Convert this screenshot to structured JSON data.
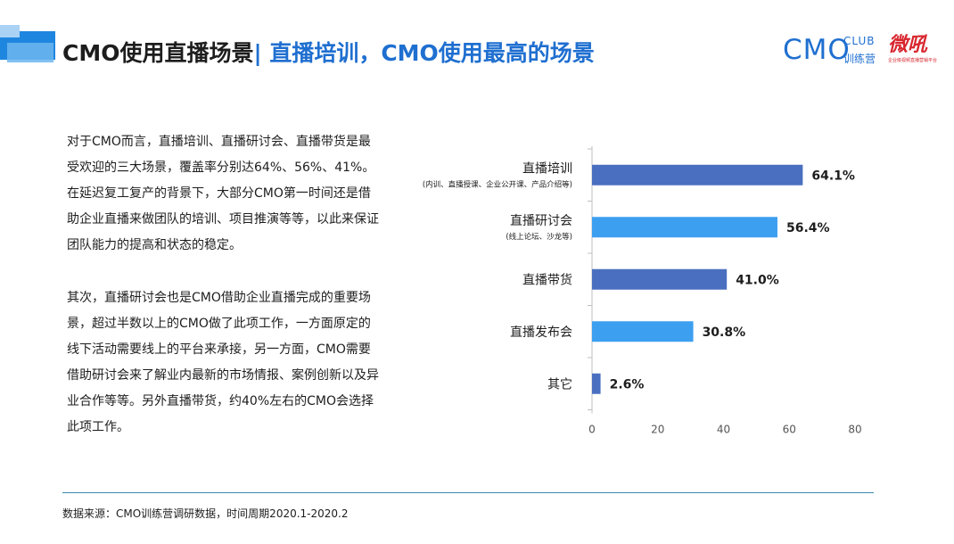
{
  "header": {
    "title_part1": "CMO使用直播场景",
    "title_part2": "| 直播培训，CMO使用最高的场景"
  },
  "logos": {
    "cmo_mark": "CMO",
    "cmo_club": "CLUB",
    "cmo_sub": "训练营",
    "wei_mark": "微吼",
    "wei_sub": "企业级视频直播营销平台"
  },
  "body": {
    "paragraph1": "对于CMO而言，直播培训、直播研讨会、直播带货是最受欢迎的三大场景，覆盖率分别达64%、56%、41%。在延迟复工复产的背景下，大部分CMO第一时间还是借助企业直播来做团队的培训、项目推演等等，以此来保证团队能力的提高和状态的稳定。",
    "paragraph2": "其次，直播研讨会也是CMO借助企业直播完成的重要场景，超过半数以上的CMO做了此项工作，一方面原定的线下活动需要线上的平台来承接，另一方面，CMO需要借助研讨会来了解业内最新的市场情报、案例创新以及异业合作等等。另外直播带货，约40%左右的CMO会选择此项工作。"
  },
  "colors": {
    "accent_blue": "#1f6fd0",
    "bar_dark": "#4a6fc0",
    "bar_light": "#3d9ff0",
    "logo_red": "#d8262e"
  },
  "chart_data": {
    "type": "bar",
    "orientation": "horizontal",
    "categories": [
      "直播培训",
      "直播研讨会",
      "直播带货",
      "直播发布会",
      "其它"
    ],
    "category_notes": [
      "(内训、直播授课、企业公开课、产品介绍等)",
      "(线上论坛、沙龙等)",
      "",
      "",
      ""
    ],
    "values": [
      64.1,
      56.4,
      41.0,
      30.8,
      2.6
    ],
    "value_labels": [
      "64.1%",
      "56.4%",
      "41.0%",
      "30.8%",
      "2.6%"
    ],
    "bar_colors": [
      "#4a6fc0",
      "#3d9ff0",
      "#4a6fc0",
      "#3d9ff0",
      "#4a6fc0"
    ],
    "xlim": [
      0,
      80
    ],
    "xticks": [
      "0",
      "20",
      "40",
      "60",
      "80"
    ],
    "grid": false
  },
  "footer": {
    "source": "数据来源：CMO训练营调研数据，时间周期2020.1-2020.2"
  }
}
